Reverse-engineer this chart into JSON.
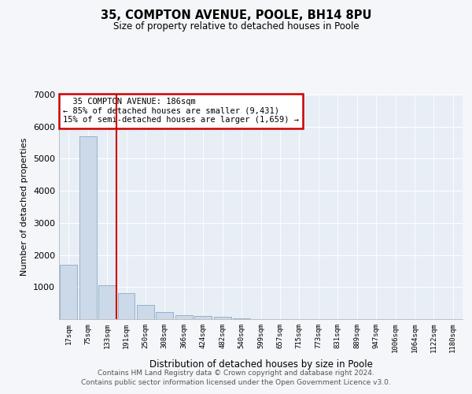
{
  "title1": "35, COMPTON AVENUE, POOLE, BH14 8PU",
  "title2": "Size of property relative to detached houses in Poole",
  "xlabel": "Distribution of detached houses by size in Poole",
  "ylabel": "Number of detached properties",
  "bar_color": "#ccd9e8",
  "bar_edge_color": "#7a9fc0",
  "vline_color": "#cc0000",
  "annotation_text": "  35 COMPTON AVENUE: 186sqm\n← 85% of detached houses are smaller (9,431)\n15% of semi-detached houses are larger (1,659) →",
  "annotation_box_color": "#cc0000",
  "categories": [
    "17sqm",
    "75sqm",
    "133sqm",
    "191sqm",
    "250sqm",
    "308sqm",
    "366sqm",
    "424sqm",
    "482sqm",
    "540sqm",
    "599sqm",
    "657sqm",
    "715sqm",
    "773sqm",
    "831sqm",
    "889sqm",
    "947sqm",
    "1006sqm",
    "1064sqm",
    "1122sqm",
    "1180sqm"
  ],
  "values": [
    1700,
    5700,
    1050,
    820,
    450,
    215,
    135,
    110,
    65,
    28,
    10,
    5,
    3,
    2,
    1,
    1,
    0,
    0,
    0,
    0,
    0
  ],
  "ylim": [
    0,
    7000
  ],
  "yticks": [
    0,
    1000,
    2000,
    3000,
    4000,
    5000,
    6000,
    7000
  ],
  "footer1": "Contains HM Land Registry data © Crown copyright and database right 2024.",
  "footer2": "Contains public sector information licensed under the Open Government Licence v3.0.",
  "background_color": "#f4f6f9",
  "plot_bg_color": "#e8eef5"
}
